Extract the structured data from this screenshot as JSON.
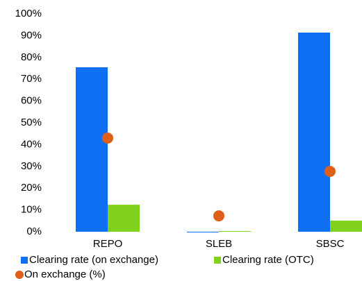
{
  "chart_data": {
    "type": "bar",
    "categories": [
      "REPO",
      "SLEB",
      "SBSC"
    ],
    "series": [
      {
        "name": "Clearing rate (on exchange)",
        "color": "#0f6ff2",
        "values": [
          75.5,
          0,
          91.4
        ]
      },
      {
        "name": "Clearing rate (OTC)",
        "color": "#80d11b",
        "values": [
          12.4,
          0.3,
          5.1
        ]
      },
      {
        "name": "On exchange (%)",
        "color": "#df5f18",
        "mark": "dot",
        "values": [
          43,
          7.3,
          27.7
        ]
      }
    ],
    "ylim": [
      0,
      100
    ],
    "yticks": [
      {
        "value": 0,
        "label": "0%"
      },
      {
        "value": 10,
        "label": "10%"
      },
      {
        "value": 20,
        "label": "20%"
      },
      {
        "value": 30,
        "label": "30%"
      },
      {
        "value": 40,
        "label": "40%"
      },
      {
        "value": 50,
        "label": "50%"
      },
      {
        "value": 60,
        "label": "60%"
      },
      {
        "value": 70,
        "label": "70%"
      },
      {
        "value": 80,
        "label": "80%"
      },
      {
        "value": 90,
        "label": "90%"
      },
      {
        "value": 100,
        "label": "100%"
      }
    ],
    "grid": false
  }
}
